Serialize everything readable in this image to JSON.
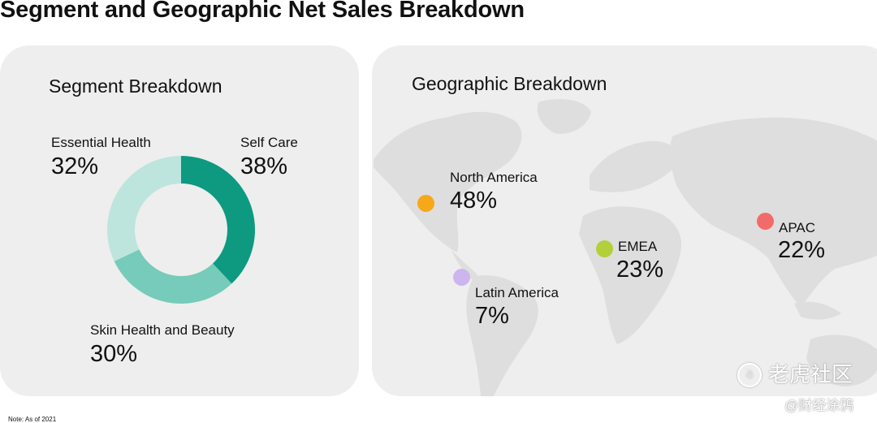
{
  "title": "Segment and Geographic Net Sales Breakdown",
  "note": "Note: As of 2021",
  "chart_data": [
    {
      "type": "pie",
      "title": "Segment Breakdown",
      "style": "donut",
      "slices": [
        {
          "label": "Self Care",
          "value": 38,
          "pct_label": "38%",
          "color": "#0d9a80"
        },
        {
          "label": "Skin Health and Beauty",
          "value": 30,
          "pct_label": "30%",
          "color": "#76cbba"
        },
        {
          "label": "Essential Health",
          "value": 32,
          "pct_label": "32%",
          "color": "#bde5dd"
        }
      ]
    },
    {
      "type": "map",
      "title": "Geographic Breakdown",
      "regions": [
        {
          "label": "North America",
          "value": 48,
          "pct_label": "48%",
          "color": "#f7a819"
        },
        {
          "label": "Latin America",
          "value": 7,
          "pct_label": "7%",
          "color": "#cdb5ee"
        },
        {
          "label": "EMEA",
          "value": 23,
          "pct_label": "23%",
          "color": "#b3cf3a"
        },
        {
          "label": "APAC",
          "value": 22,
          "pct_label": "22%",
          "color": "#f26b6b"
        }
      ]
    }
  ],
  "watermark": {
    "logo_glyph": "☃",
    "community": "老虎社区",
    "author": "@财经涂鸦"
  }
}
